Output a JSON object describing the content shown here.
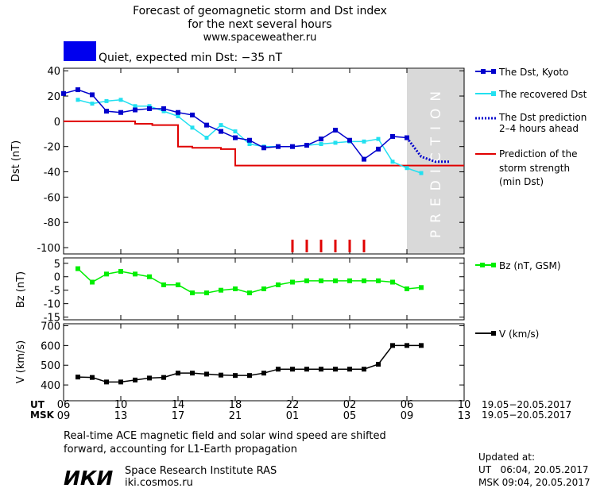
{
  "header": {
    "title_line1": "Forecast of geomagnetic storm and Dst index",
    "title_line2": "for the next several hours",
    "site": "www.spaceweather.ru",
    "status_label": "Quiet, expected min Dst: −35 nT",
    "status_color": "#0000ee"
  },
  "chart_data": [
    {
      "type": "line",
      "panel": "dst",
      "ylabel": "Dst (nT)",
      "ylim": [
        -105,
        42
      ],
      "yticks": [
        40,
        20,
        0,
        -20,
        -40,
        -60,
        -80,
        -100
      ],
      "xlim_hours": [
        0,
        28
      ],
      "prediction_band_label": "PREDICTION",
      "prediction_start_hour": 24,
      "series": [
        {
          "name": "The Dst, Kyoto",
          "color": "#0000cc",
          "x": [
            0,
            1,
            2,
            3,
            4,
            5,
            6,
            7,
            8,
            9,
            10,
            11,
            12,
            13,
            14,
            15,
            16,
            17,
            18,
            19,
            20,
            21,
            22,
            23,
            24
          ],
          "y": [
            22,
            25,
            21,
            8,
            7,
            9,
            10,
            10,
            7,
            5,
            -3,
            -8,
            -13,
            -15,
            -21,
            -20,
            -20,
            -19,
            -14,
            -7,
            -15,
            -30,
            -22,
            -12,
            -13
          ]
        },
        {
          "name": "The recovered Dst",
          "color": "#22e0f0",
          "x": [
            1,
            2,
            3,
            4,
            5,
            6,
            7,
            8,
            9,
            10,
            11,
            12,
            13,
            14,
            15,
            16,
            17,
            18,
            19,
            20,
            21,
            22,
            23,
            24,
            25
          ],
          "y": [
            17,
            14,
            16,
            17,
            12,
            12,
            8,
            4,
            -5,
            -13,
            -3,
            -8,
            -18,
            -20,
            -20,
            -20,
            -19,
            -18,
            -17,
            -16,
            -16,
            -14,
            -32,
            -37,
            -41
          ]
        },
        {
          "name": "The Dst prediction 2–4 hours ahead",
          "color": "#0000cc",
          "x": [
            24,
            25,
            26,
            27
          ],
          "y": [
            -13,
            -28,
            -32,
            -32
          ]
        },
        {
          "name": "Prediction of the storm strength (min Dst)",
          "color": "#e00000",
          "x": [
            0,
            5,
            5,
            6.2,
            6.2,
            8,
            8,
            9,
            9,
            11,
            11,
            12,
            12,
            28
          ],
          "y": [
            0,
            0,
            -2,
            -2,
            -3,
            -3,
            -20,
            -20,
            -21,
            -21,
            -22,
            -22,
            -35,
            -35
          ]
        }
      ],
      "markers_x": [
        16,
        17,
        18,
        19,
        20,
        21
      ],
      "markers_color": "#e00000"
    },
    {
      "type": "line",
      "panel": "bz",
      "ylabel": "Bz (nT)",
      "ylim": [
        -16,
        7
      ],
      "yticks": [
        5,
        0,
        -5,
        -10,
        -15
      ],
      "series": [
        {
          "name": "Bz (nT, GSM)",
          "color": "#00ee00",
          "x": [
            1,
            2,
            3,
            4,
            5,
            6,
            7,
            8,
            9,
            10,
            11,
            12,
            13,
            14,
            15,
            16,
            17,
            18,
            19,
            20,
            21,
            22,
            23,
            24,
            25
          ],
          "y": [
            3,
            -2,
            1,
            2,
            1,
            0,
            -3,
            -3,
            -6,
            -6,
            -5,
            -4.5,
            -6,
            -4.5,
            -3,
            -2,
            -1.5,
            -1.5,
            -1.5,
            -1.5,
            -1.5,
            -1.5,
            -2,
            -4.5,
            -4
          ]
        }
      ]
    },
    {
      "type": "line",
      "panel": "v",
      "ylabel": "V (km/s)",
      "ylim": [
        320,
        710
      ],
      "yticks": [
        700,
        600,
        500,
        400
      ],
      "series": [
        {
          "name": "V (km/s)",
          "color": "#000000",
          "x": [
            1,
            2,
            3,
            4,
            5,
            6,
            7,
            8,
            9,
            10,
            11,
            12,
            13,
            14,
            15,
            16,
            17,
            18,
            19,
            20,
            21,
            22,
            23,
            24,
            25
          ],
          "y": [
            440,
            438,
            415,
            415,
            425,
            435,
            438,
            460,
            460,
            455,
            450,
            448,
            448,
            460,
            480,
            480,
            480,
            480,
            480,
            480,
            480,
            505,
            600,
            600,
            600
          ]
        }
      ]
    }
  ],
  "axes": {
    "ut_label": "UT",
    "msk_label": "MSK",
    "ut_ticks": [
      "06",
      "10",
      "14",
      "18",
      "22",
      "02",
      "06",
      "10"
    ],
    "msk_ticks": [
      "09",
      "13",
      "17",
      "21",
      "01",
      "05",
      "09",
      "13"
    ],
    "tick_hours": [
      0,
      4,
      8,
      12,
      16,
      20,
      24,
      28
    ],
    "date_range": "19.05−20.05.2017"
  },
  "footer": {
    "note_line1": "Real-time ACE magnetic field and solar wind speed are shifted",
    "note_line2": "forward, accounting for L1-Earth propagation",
    "logo_text": "ИКИ",
    "institute": "Space Research Institute RAS",
    "site": "iki.cosmos.ru",
    "updated_label": "Updated at:",
    "updated_ut": "UT   06:04, 20.05.2017",
    "updated_msk": "MSK 09:04, 20.05.2017"
  },
  "legend": {
    "dst_kyoto": "The Dst, Kyoto",
    "recovered": "The recovered Dst",
    "prediction_1": "The Dst prediction",
    "prediction_2": "2–4 hours ahead",
    "strength_1": "Prediction of the",
    "strength_2": "storm strength",
    "strength_3": "(min Dst)",
    "bz": "Bz (nT, GSM)",
    "v": "V (km/s)"
  }
}
